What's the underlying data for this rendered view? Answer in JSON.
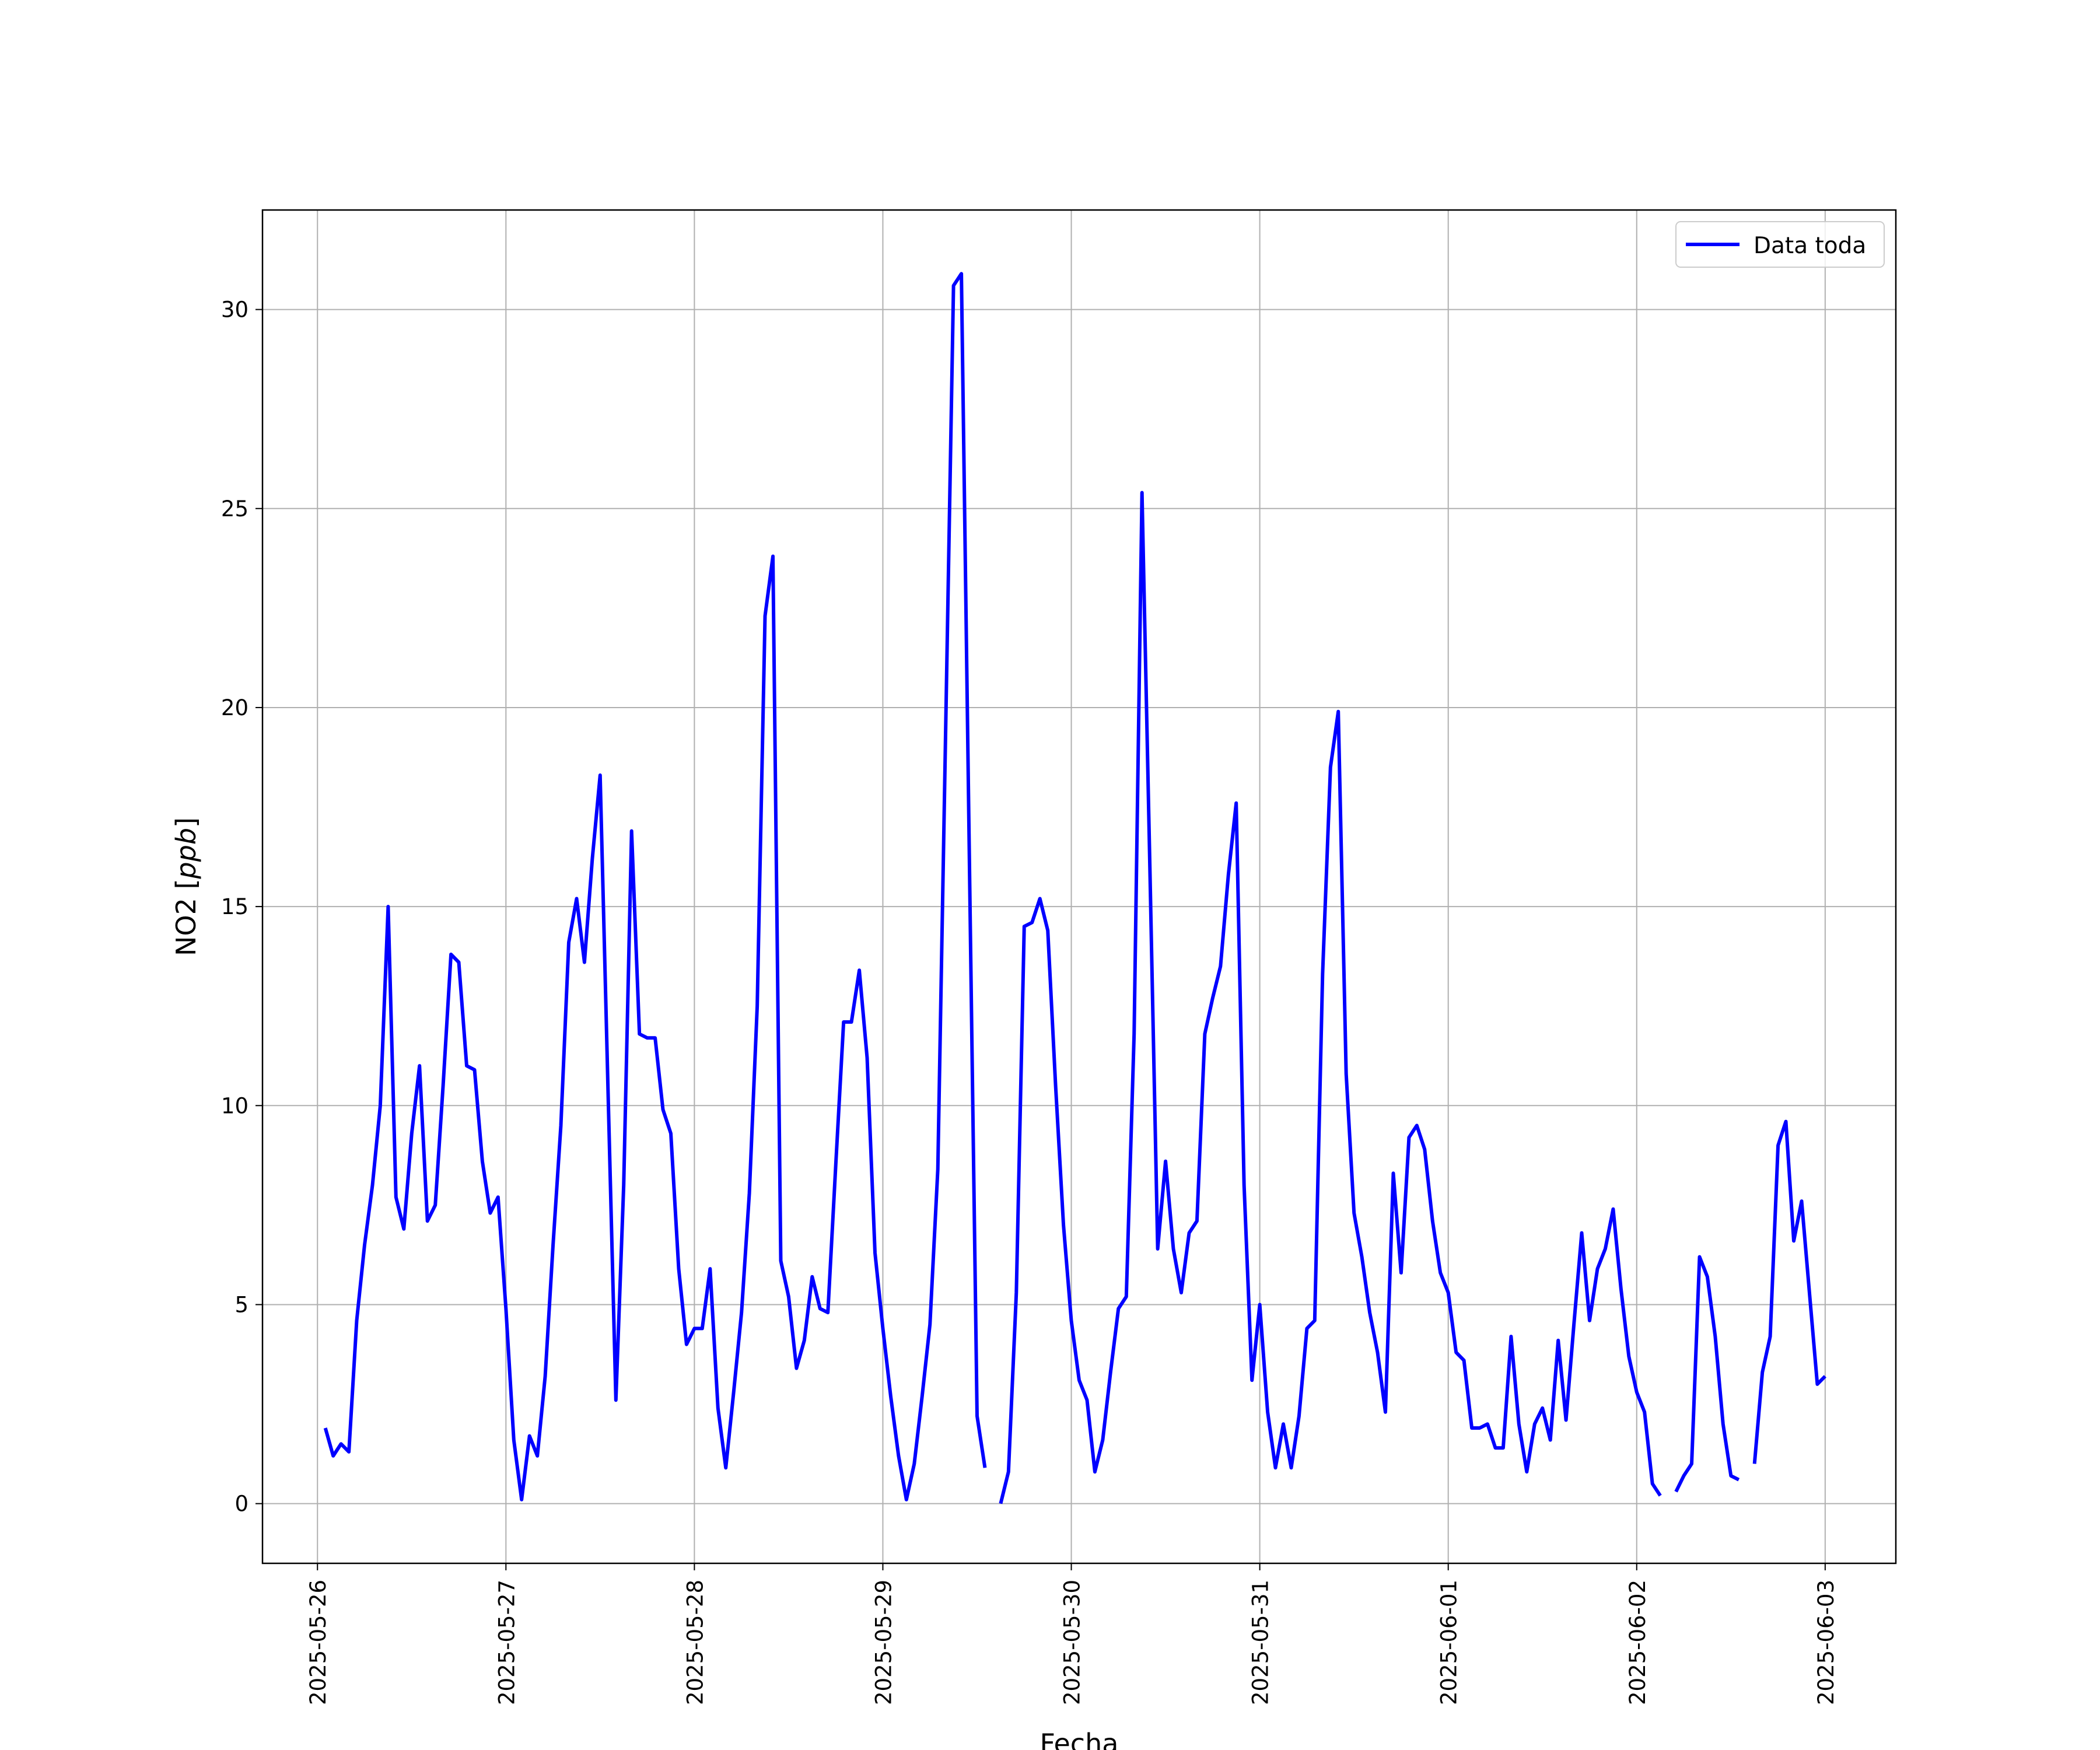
{
  "chart_data": {
    "type": "line",
    "xlabel": "Fecha",
    "ylabel_main": "NO2 [",
    "ylabel_unit": "ppb",
    "ylabel_close": "]",
    "x_range": [
      "2025-05-25T17:00",
      "2025-06-03T09:00"
    ],
    "ylim": [
      -1.5,
      32.5
    ],
    "y_ticks": [
      0,
      5,
      10,
      15,
      20,
      25,
      30
    ],
    "x_ticks": [
      "2025-05-26",
      "2025-05-27",
      "2025-05-28",
      "2025-05-29",
      "2025-05-30",
      "2025-05-31",
      "2025-06-01",
      "2025-06-02",
      "2025-06-03"
    ],
    "grid": true,
    "legend_position": "top-right",
    "series": [
      {
        "name": "Data toda",
        "color": "#0000ff",
        "start": "2025-05-26T01:00",
        "step_hours": 1,
        "values": [
          1.9,
          1.2,
          1.5,
          1.3,
          4.6,
          6.5,
          8.0,
          10.0,
          15.0,
          7.7,
          6.9,
          9.3,
          11.0,
          7.1,
          7.5,
          10.5,
          13.8,
          13.6,
          11.0,
          10.9,
          8.6,
          7.3,
          7.7,
          4.9,
          1.6,
          0.1,
          1.7,
          1.2,
          3.2,
          6.5,
          9.5,
          14.1,
          15.2,
          13.6,
          16.2,
          18.3,
          10.4,
          2.6,
          8.0,
          16.9,
          11.8,
          11.7,
          11.7,
          9.9,
          9.3,
          5.9,
          4.0,
          4.4,
          4.4,
          5.9,
          2.4,
          0.9,
          2.8,
          4.8,
          7.8,
          12.5,
          22.3,
          23.8,
          6.1,
          5.2,
          3.4,
          4.1,
          5.7,
          4.9,
          4.8,
          8.5,
          12.1,
          12.1,
          13.4,
          11.2,
          6.3,
          4.4,
          2.7,
          1.2,
          0.1,
          1.0,
          2.7,
          4.5,
          8.4,
          19.5,
          30.6,
          30.9,
          16.5,
          2.2,
          0.9,
          null,
          0.0,
          0.8,
          5.3,
          14.5,
          14.6,
          15.2,
          14.4,
          10.5,
          7.0,
          4.6,
          3.1,
          2.6,
          0.8,
          1.6,
          3.3,
          4.9,
          5.2,
          11.8,
          25.4,
          16.0,
          6.4,
          8.6,
          6.4,
          5.3,
          6.8,
          7.1,
          11.8,
          12.7,
          13.5,
          15.8,
          17.6,
          8.0,
          3.1,
          5.0,
          2.3,
          0.9,
          2.0,
          0.9,
          2.2,
          4.4,
          4.6,
          13.3,
          18.5,
          19.9,
          10.8,
          7.3,
          6.2,
          4.8,
          3.8,
          2.3,
          8.3,
          5.8,
          9.2,
          9.5,
          8.9,
          7.1,
          5.8,
          5.3,
          3.8,
          3.6,
          1.9,
          1.9,
          2.0,
          1.4,
          1.4,
          4.2,
          2.0,
          0.8,
          2.0,
          2.4,
          1.6,
          4.1,
          2.1,
          4.5,
          6.8,
          4.6,
          5.9,
          6.4,
          7.4,
          5.4,
          3.7,
          2.8,
          2.3,
          0.5,
          0.2,
          null,
          0.3,
          0.7,
          1.0,
          6.2,
          5.7,
          4.2,
          2.0,
          0.7,
          0.6,
          null,
          1.0,
          3.3,
          4.2,
          9.0,
          9.6,
          6.6,
          7.6,
          5.3,
          3.0,
          3.2
        ]
      }
    ]
  }
}
